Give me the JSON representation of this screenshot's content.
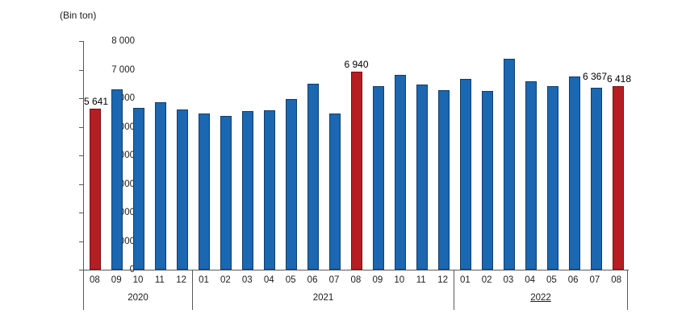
{
  "title": "(Bin ton)",
  "chart_data": {
    "type": "bar",
    "title": "(Bin ton)",
    "ylabel": "(Bin ton)",
    "ylim": [
      0,
      8000
    ],
    "ytick_step": 1000,
    "ytick_labels": [
      "0",
      "1 000",
      "2 000",
      "3 000",
      "4 000",
      "5 000",
      "6 000",
      "7 000",
      "8 000"
    ],
    "grid": "off",
    "legend": "none",
    "groups": [
      {
        "year": "2020",
        "underlined": false,
        "bars": [
          {
            "month": "08",
            "value": 5641,
            "color": "red",
            "label": "5 641",
            "label_align": "left"
          },
          {
            "month": "09",
            "value": 6320,
            "color": "blue"
          },
          {
            "month": "10",
            "value": 5650,
            "color": "blue"
          },
          {
            "month": "11",
            "value": 5860,
            "color": "blue"
          },
          {
            "month": "12",
            "value": 5600,
            "color": "blue"
          }
        ]
      },
      {
        "year": "2021",
        "underlined": false,
        "bars": [
          {
            "month": "01",
            "value": 5460,
            "color": "blue"
          },
          {
            "month": "02",
            "value": 5370,
            "color": "blue"
          },
          {
            "month": "03",
            "value": 5560,
            "color": "blue"
          },
          {
            "month": "04",
            "value": 5580,
            "color": "blue"
          },
          {
            "month": "05",
            "value": 5960,
            "color": "blue"
          },
          {
            "month": "06",
            "value": 6500,
            "color": "blue"
          },
          {
            "month": "07",
            "value": 5460,
            "color": "blue"
          },
          {
            "month": "08",
            "value": 6940,
            "color": "red",
            "label": "6 940"
          },
          {
            "month": "09",
            "value": 6430,
            "color": "blue"
          },
          {
            "month": "10",
            "value": 6820,
            "color": "blue"
          },
          {
            "month": "11",
            "value": 6480,
            "color": "blue"
          },
          {
            "month": "12",
            "value": 6290,
            "color": "blue"
          }
        ]
      },
      {
        "year": "2022",
        "underlined": true,
        "bars": [
          {
            "month": "01",
            "value": 6670,
            "color": "blue"
          },
          {
            "month": "02",
            "value": 6240,
            "color": "blue"
          },
          {
            "month": "03",
            "value": 7370,
            "color": "blue"
          },
          {
            "month": "04",
            "value": 6600,
            "color": "blue"
          },
          {
            "month": "05",
            "value": 6410,
            "color": "blue"
          },
          {
            "month": "06",
            "value": 6750,
            "color": "blue"
          },
          {
            "month": "07",
            "value": 6367,
            "color": "blue",
            "label": "6 367",
            "label_dy": 5,
            "label_dx": -55
          },
          {
            "month": "08",
            "value": 6418,
            "color": "red",
            "label": "6 418",
            "label_dx": -45
          }
        ]
      }
    ]
  },
  "colors": {
    "bar_blue": "#1b67b1",
    "bar_blue_border": "#123e6b",
    "bar_red": "#b71d22",
    "bar_red_border": "#7a1113",
    "axis": "#58585a",
    "text": "#1c1c1c"
  }
}
